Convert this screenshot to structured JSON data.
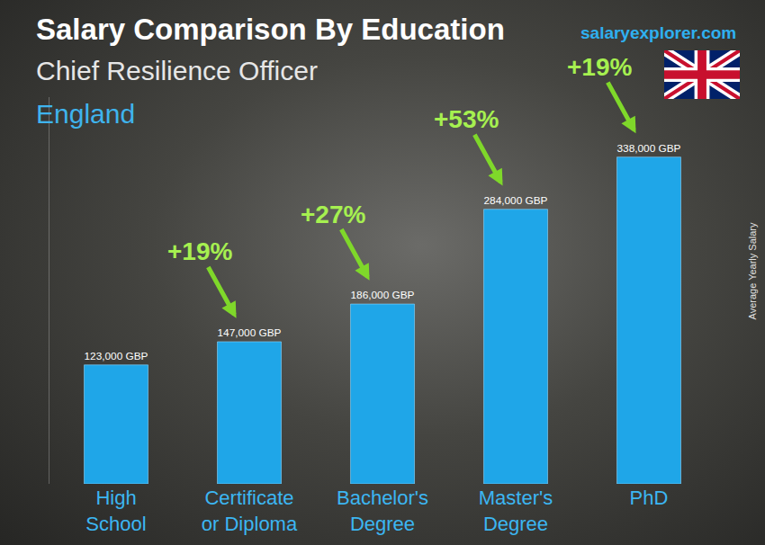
{
  "chart_data": {
    "type": "bar",
    "title": "Salary Comparison By Education",
    "subtitle": "Chief Resilience Officer",
    "location": "England",
    "source": "salaryexplorer.com",
    "y_label": "Average Yearly Salary",
    "categories": [
      "High School",
      "Certificate or Diploma",
      "Bachelor's Degree",
      "Master's Degree",
      "PhD"
    ],
    "values": [
      123000,
      147000,
      186000,
      284000,
      338000
    ],
    "value_labels": [
      "123,000 GBP",
      "147,000 GBP",
      "186,000 GBP",
      "284,000 GBP",
      "338,000 GBP"
    ],
    "annotations": [
      {
        "from": "High School",
        "to": "Certificate or Diploma",
        "text": "+19%"
      },
      {
        "from": "Certificate or Diploma",
        "to": "Bachelor's Degree",
        "text": "+27%"
      },
      {
        "from": "Bachelor's Degree",
        "to": "Master's Degree",
        "text": "+53%"
      },
      {
        "from": "Master's Degree",
        "to": "PhD",
        "text": "+19%"
      }
    ],
    "color": "#1fa6e8",
    "ylim": [
      0,
      400000
    ],
    "yticks": [],
    "tick_labels": "x",
    "data_labels": true,
    "grid": false
  }
}
